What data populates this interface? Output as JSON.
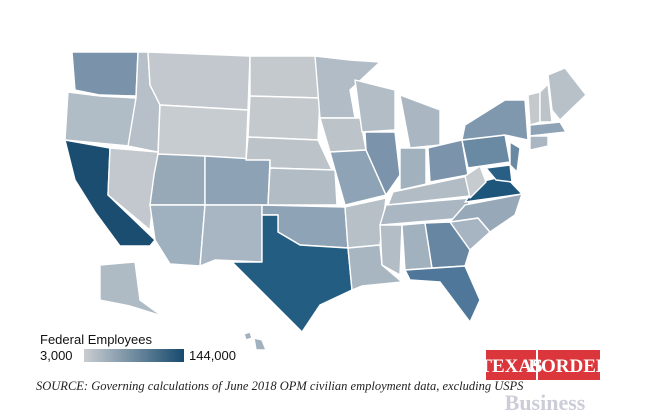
{
  "legend": {
    "title": "Federal Employees",
    "scale": [
      {
        "value": 3000,
        "label": "3,000"
      },
      {
        "value": 144000,
        "label": "144,000"
      }
    ],
    "colors": [
      "#c9cdd1",
      "#174a6e"
    ]
  },
  "source": "SOURCE: Governing calculations of June 2018 OPM civilian employment data, excluding USPS",
  "logo": {
    "word1": "TEXAS",
    "word2": "BORDER",
    "word3": "Business"
  }
}
